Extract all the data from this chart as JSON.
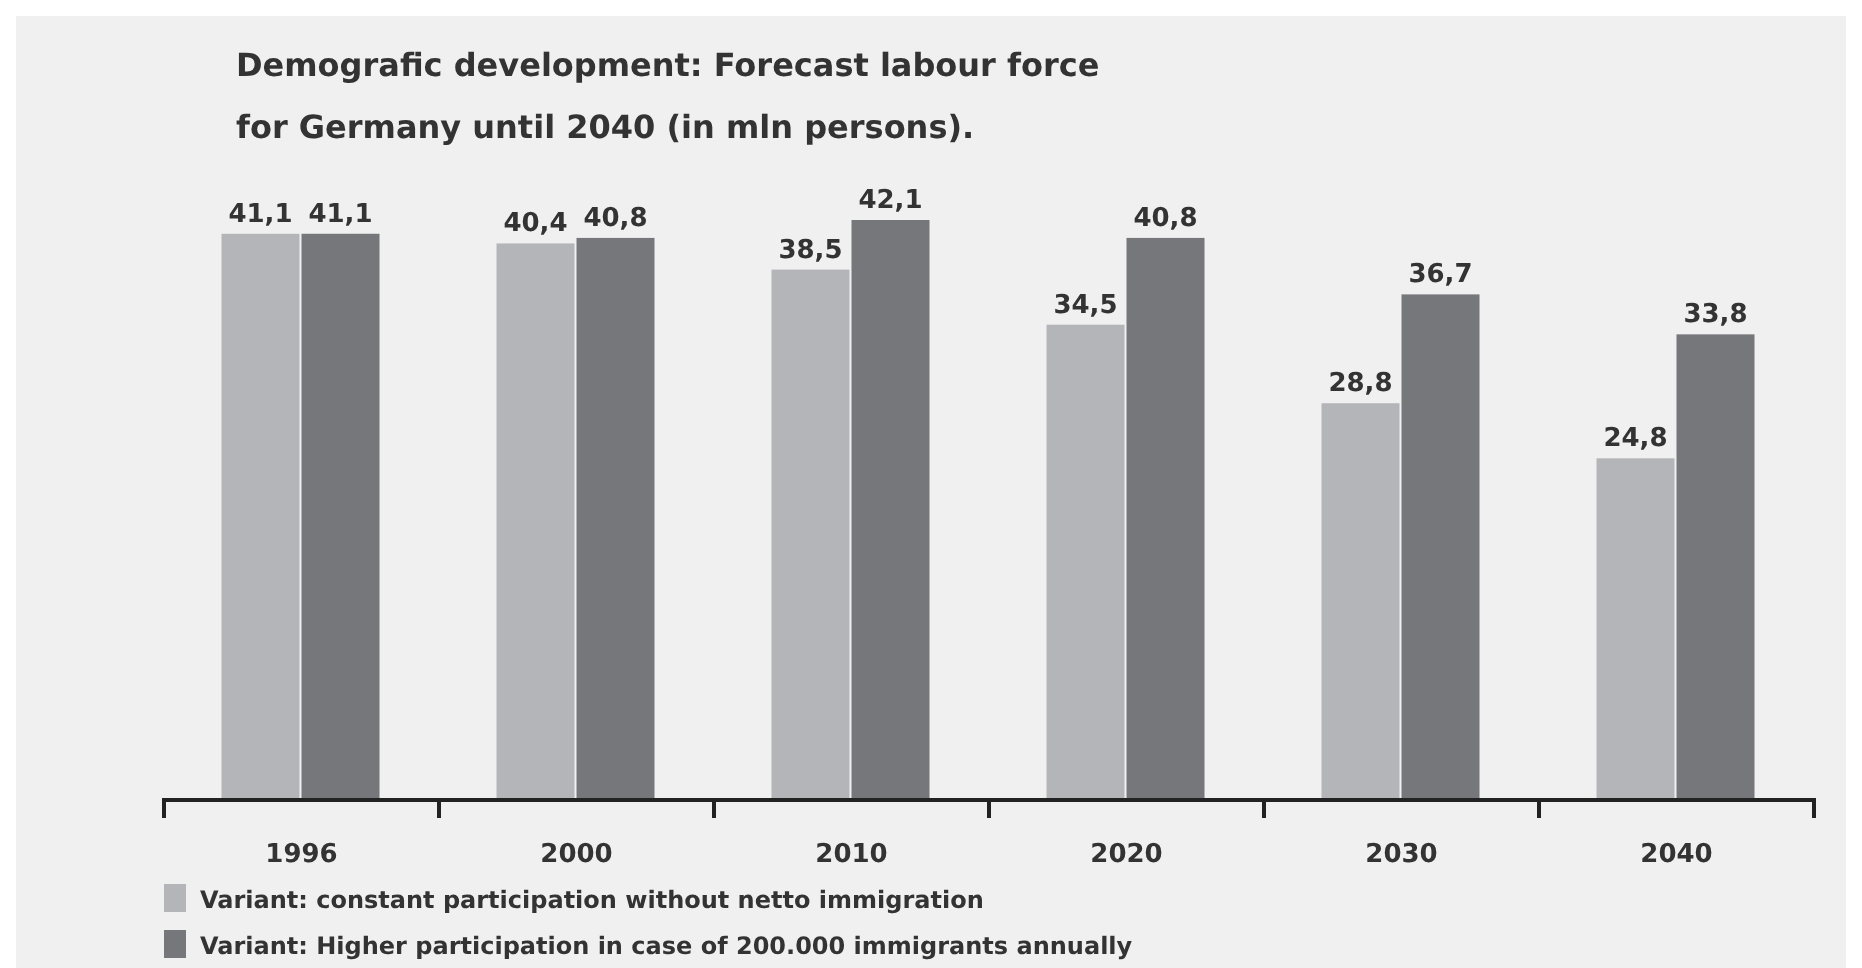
{
  "chart_data": {
    "type": "bar",
    "title": "Demografic development: Forecast labour force\nfor Germany until 2040 (in mln persons).",
    "categories": [
      "1996",
      "2000",
      "2010",
      "2020",
      "2030",
      "2040"
    ],
    "series": [
      {
        "name": "Variant: constant participation without netto immigration",
        "color": "#b4b5b8",
        "values": [
          41.1,
          40.4,
          38.5,
          34.5,
          28.8,
          24.8
        ],
        "value_labels": [
          "41,1",
          "40,4",
          "38,5",
          "34,5",
          "28,8",
          "24,8"
        ]
      },
      {
        "name": "Variant: Higher participation in case of 200.000 immigrants annually",
        "color": "#76777b",
        "values": [
          41.1,
          40.8,
          42.1,
          40.8,
          36.7,
          33.8
        ],
        "value_labels": [
          "41,1",
          "40,8",
          "42,1",
          "40,8",
          "36,7",
          "33,8"
        ]
      }
    ],
    "legend": "bottom left"
  }
}
